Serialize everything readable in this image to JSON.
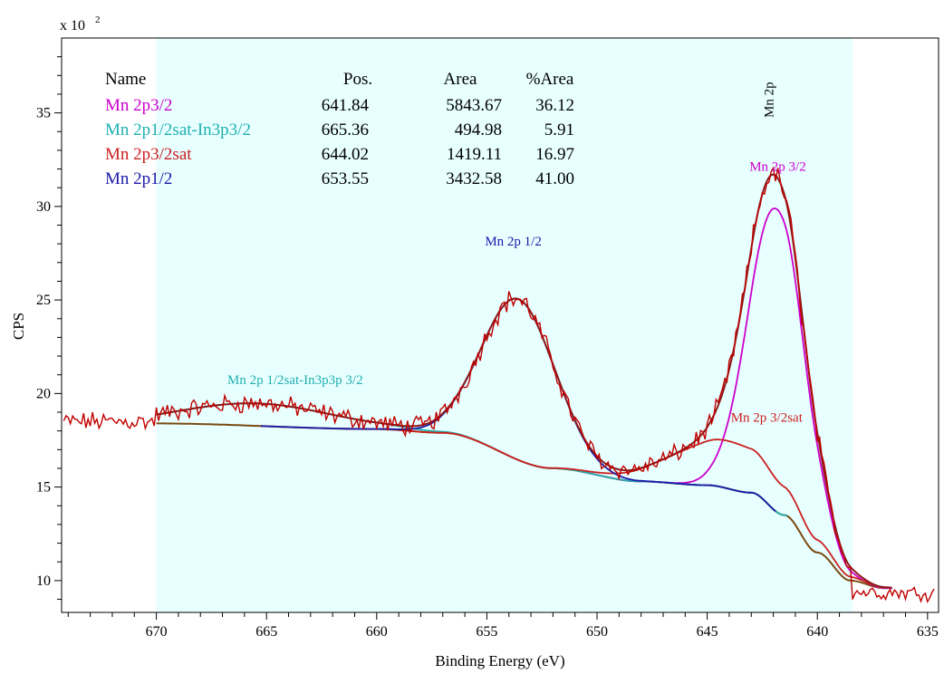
{
  "chart_data": {
    "type": "line",
    "title": "",
    "xlabel": "Binding Energy (eV)",
    "ylabel": "CPS",
    "y_multiplier_label": "x 10",
    "y_multiplier_exp": "2",
    "xlim": [
      674.3,
      634.5
    ],
    "ylim": [
      8.3,
      39.0
    ],
    "x_ticks": [
      670,
      665,
      660,
      655,
      650,
      645,
      640,
      635
    ],
    "y_ticks": [
      10,
      15,
      20,
      25,
      30,
      35
    ],
    "fit_region": [
      670,
      638.4
    ],
    "colors": {
      "region": "#e8ffff",
      "raw": "#c00000",
      "envelope": "#8b1a1a",
      "background": "#7a4a10",
      "mn2p32": "#cc00cc",
      "sat_in3p": "#20b0b0",
      "mn2p32sat": "#cc2020",
      "mn2p12": "#1a1aaa"
    },
    "peaks": [
      {
        "name": "Mn 2p3/2",
        "pos": 641.84,
        "area": 5843.67,
        "pct": 36.12,
        "amp": 16.2,
        "fwhm": 3.0,
        "color_key": "mn2p32"
      },
      {
        "name": "Mn 2p1/2sat-In3p3/2",
        "pos": 665.36,
        "area": 494.98,
        "pct": 5.91,
        "amp": 1.2,
        "fwhm": 8.0,
        "color_key": "sat_in3p"
      },
      {
        "name": "Mn 2p3/2sat",
        "pos": 644.02,
        "area": 1419.11,
        "pct": 16.97,
        "amp": 2.55,
        "fwhm": 5.8,
        "color_key": "mn2p32sat"
      },
      {
        "name": "Mn 2p1/2",
        "pos": 653.55,
        "area": 3432.58,
        "pct": 41.0,
        "amp": 8.6,
        "fwhm": 3.9,
        "color_key": "mn2p12"
      }
    ],
    "background": {
      "x": [
        674,
        670,
        660,
        657,
        652,
        648,
        645,
        643,
        641.5,
        640,
        638.5,
        637,
        634.7
      ],
      "y": [
        18.4,
        18.4,
        18.1,
        17.9,
        16.0,
        15.3,
        15.1,
        14.7,
        13.5,
        11.5,
        10.0,
        9.6,
        9.5
      ]
    },
    "annotations": [
      {
        "text": "Mn 2p",
        "x": 642.0,
        "y": 35.7,
        "rotate": true,
        "color_key": "raw_text"
      },
      {
        "text": "Mn 2p 3/2",
        "x": 641.8,
        "y": 31.9,
        "color_key": "mn2p32"
      },
      {
        "text": "Mn 2p 1/2",
        "x": 653.8,
        "y": 27.9,
        "color_key": "mn2p12"
      },
      {
        "text": "Mn 2p 1/2sat-In3p3p 3/2",
        "x": 663.7,
        "y": 20.5,
        "color_key": "sat_in3p"
      },
      {
        "text": "Mn 2p 3/2sat",
        "x": 642.3,
        "y": 18.5,
        "color_key": "mn2p32sat"
      }
    ],
    "legend": {
      "placement": "top-left",
      "headers": {
        "name": "Name",
        "pos": "Pos.",
        "area": "Area",
        "pct": "%Area"
      },
      "rows": [
        {
          "name": "Mn 2p3/2",
          "pos": "641.84",
          "area": "5843.67",
          "pct": "36.12",
          "color_key": "mn2p32"
        },
        {
          "name": "Mn 2p1/2sat-In3p3/2",
          "pos": "665.36",
          "area": "494.98",
          "pct": "5.91",
          "color_key": "sat_in3p"
        },
        {
          "name": "Mn 2p3/2sat",
          "pos": "644.02",
          "area": "1419.11",
          "pct": "16.97",
          "color_key": "mn2p32sat"
        },
        {
          "name": "Mn 2p1/2",
          "pos": "653.55",
          "area": "3432.58",
          "pct": "41.00",
          "color_key": "mn2p12"
        }
      ]
    }
  }
}
